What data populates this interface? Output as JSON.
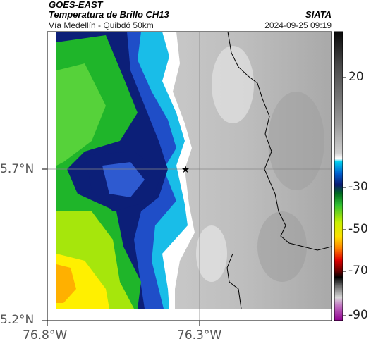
{
  "header": {
    "satellite": "GOES-EAST",
    "product": "Temperatura de Brillo CH13",
    "route": "Vía Medellín - Quibdó 50km",
    "source": "SIATA",
    "timestamp": "2024-09-25 09:19"
  },
  "map": {
    "lat_ticks": [
      "5.7°N",
      "5.2°N"
    ],
    "lon_ticks": [
      "76.8°W",
      "76.3°W"
    ],
    "marker": "star-icon",
    "layers": [
      "brightness-temperature",
      "department-borders",
      "reference-gridlines"
    ]
  },
  "colorbar": {
    "ticks": [
      "20",
      "-30",
      "-50",
      "-70",
      "-90"
    ],
    "colors": {
      "warm": "#101010",
      "gray": "#c8c8c8",
      "white": "#ffffff",
      "cyan": "#00b6e6",
      "blue_dark": "#0a1f7a",
      "green": "#18b818",
      "yellow": "#fff000",
      "orange": "#ff7a00",
      "red": "#c80000",
      "black": "#000000",
      "magenta": "#b040b0"
    }
  }
}
